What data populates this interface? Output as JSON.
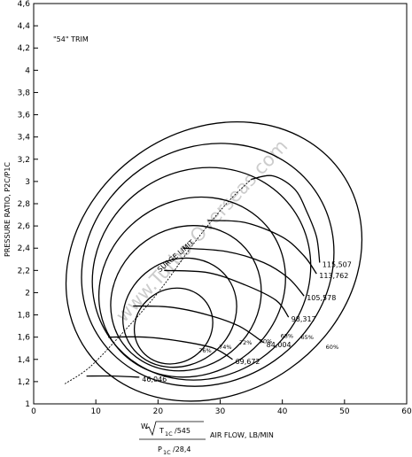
{
  "chart_data": {
    "type": "line",
    "title": "\"54\" TRIM",
    "xlabel": "AIR FLOW, LB/MIN",
    "ylabel": "PRESSURE RATIO, P2C/P1C",
    "xlim": [
      0,
      60
    ],
    "ylim": [
      1,
      4.6
    ],
    "x_ticks": [
      "0",
      "10",
      "20",
      "30",
      "40",
      "50",
      "60"
    ],
    "y_ticks": [
      "1",
      "1,2",
      "1,4",
      "1,6",
      "1,8",
      "2",
      "2,2",
      "2,4",
      "2,6",
      "2,8",
      "3",
      "3,2",
      "3,4",
      "3,6",
      "3,8",
      "4",
      "4,2",
      "4,4",
      "4,6"
    ],
    "formula": {
      "w": "W",
      "t": "T",
      "t_sub": "1C",
      "t_rest": "/545",
      "p": "P",
      "p_sub": "1C",
      "p_rest": "/28,4"
    },
    "watermark": "www.Turbo-Overseas.com",
    "surge_label": "SURGE LIMIT",
    "speed_lines": [
      {
        "label": "46,046",
        "points": [
          [
            8.5,
            1.25
          ],
          [
            13,
            1.25
          ],
          [
            17,
            1.24
          ]
        ]
      },
      {
        "label": "69,672",
        "points": [
          [
            12,
            1.6
          ],
          [
            18,
            1.6
          ],
          [
            24,
            1.56
          ],
          [
            29,
            1.5
          ],
          [
            32,
            1.4
          ]
        ]
      },
      {
        "label": "84,004",
        "points": [
          [
            16,
            1.88
          ],
          [
            22,
            1.87
          ],
          [
            28,
            1.8
          ],
          [
            33,
            1.7
          ],
          [
            37,
            1.55
          ]
        ]
      },
      {
        "label": "98,317",
        "points": [
          [
            21,
            2.2
          ],
          [
            28,
            2.18
          ],
          [
            34,
            2.07
          ],
          [
            39,
            1.93
          ],
          [
            41,
            1.78
          ]
        ]
      },
      {
        "label": "105,578",
        "points": [
          [
            24,
            2.4
          ],
          [
            31,
            2.37
          ],
          [
            37,
            2.27
          ],
          [
            41,
            2.13
          ],
          [
            43.5,
            1.97
          ]
        ]
      },
      {
        "label": "113,762",
        "points": [
          [
            28,
            2.65
          ],
          [
            34,
            2.63
          ],
          [
            40,
            2.5
          ],
          [
            43.5,
            2.33
          ],
          [
            45.5,
            2.17
          ]
        ]
      },
      {
        "label": "115,507",
        "points": [
          [
            35,
            3.02
          ],
          [
            38.5,
            3.05
          ],
          [
            42,
            2.93
          ],
          [
            44,
            2.72
          ],
          [
            45.5,
            2.5
          ],
          [
            46,
            2.27
          ]
        ]
      }
    ],
    "surge_line": [
      [
        5,
        1.18
      ],
      [
        9,
        1.33
      ],
      [
        14,
        1.62
      ],
      [
        20,
        2.0
      ],
      [
        26,
        2.46
      ],
      [
        31,
        2.8
      ],
      [
        35,
        3.02
      ]
    ],
    "efficiency_islands": [
      {
        "label": "76%",
        "center": [
          22.5,
          1.7
        ],
        "rx": 6.5,
        "ry": 0.33
      },
      {
        "label": "74%",
        "center": [
          23.5,
          1.82
        ],
        "rx": 9.5,
        "ry": 0.47
      },
      {
        "label": "72%",
        "center": [
          24.5,
          1.95
        ],
        "rx": 12.5,
        "ry": 0.63
      },
      {
        "label": "70%",
        "center": [
          25.5,
          2.05
        ],
        "rx": 15.5,
        "ry": 0.78
      },
      {
        "label": "68%",
        "center": [
          27,
          2.17
        ],
        "rx": 18,
        "ry": 0.93
      },
      {
        "label": "65%",
        "center": [
          28,
          2.25
        ],
        "rx": 21,
        "ry": 1.05
      },
      {
        "label": "60%",
        "center": [
          29,
          2.28
        ],
        "rx": 25,
        "ry": 1.18
      }
    ],
    "grid": false
  }
}
